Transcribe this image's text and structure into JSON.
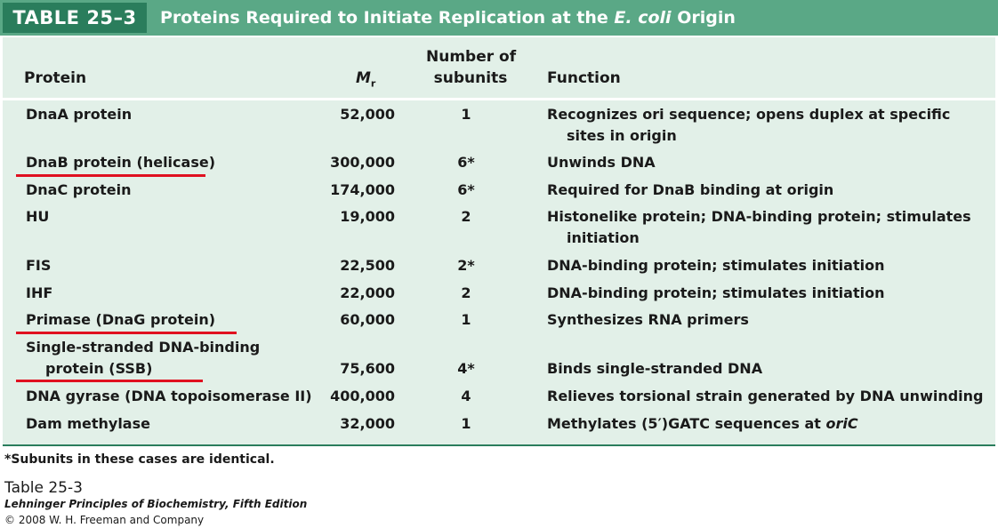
{
  "table_label": "TABLE 25–3",
  "title": {
    "prefix": "Proteins Required to Initiate Replication at the ",
    "italic": "E. coli",
    "suffix": " Origin"
  },
  "headers": {
    "protein": "Protein",
    "mr_main": "M",
    "mr_sub": "r",
    "subunits_line1": "Number of",
    "subunits_line2": "subunits",
    "function": "Function"
  },
  "rows": [
    {
      "protein": "DnaA protein",
      "mr": "52,000",
      "subunits": "1",
      "function1": "Recognizes ori sequence; opens duplex at specific",
      "function2": "sites in origin",
      "underlined": false
    },
    {
      "protein": "DnaB protein (helicase)",
      "mr": "300,000",
      "subunits": "6*",
      "function1": "Unwinds DNA",
      "underlined": true
    },
    {
      "protein": "DnaC protein",
      "mr": "174,000",
      "subunits": "6*",
      "function1": "Required for DnaB binding at origin",
      "underlined": false
    },
    {
      "protein": "HU",
      "mr": "19,000",
      "subunits": "2",
      "function1": "Histonelike protein; DNA-binding protein; stimulates",
      "function2": "initiation",
      "underlined": false
    },
    {
      "protein": "FIS",
      "mr": "22,500",
      "subunits": "2*",
      "function1": "DNA-binding protein; stimulates initiation",
      "underlined": false
    },
    {
      "protein": "IHF",
      "mr": "22,000",
      "subunits": "2",
      "function1": "DNA-binding protein; stimulates initiation",
      "underlined": false
    },
    {
      "protein": "Primase (DnaG protein)",
      "mr": "60,000",
      "subunits": "1",
      "function1": "Synthesizes RNA primers",
      "underlined": true
    },
    {
      "protein": "Single-stranded DNA-binding",
      "protein2": "protein (SSB)",
      "mr": "75,600",
      "subunits": "4*",
      "function1": "Binds single-stranded DNA",
      "underlined": true
    },
    {
      "protein": "DNA gyrase (DNA topoisomerase II)",
      "mr": "400,000",
      "subunits": "4",
      "function1": "Relieves torsional strain generated by DNA unwinding",
      "underlined": false
    },
    {
      "protein": "Dam methylase",
      "mr": "32,000",
      "subunits": "1",
      "function1": "Methylates (5′)GATC sequences at ",
      "function_italic": "oriC",
      "underlined": false
    }
  ],
  "footnote": "*Subunits in these cases are identical.",
  "caption": {
    "title": "Table 25-3",
    "book": "Lehninger Principles of Biochemistry, Fifth Edition",
    "copyright": "© 2008 W. H. Freeman and Company"
  },
  "colors": {
    "header_bar": "#5aa886",
    "tag_bg": "#2a7d5c",
    "table_bg": "#e2f0e8",
    "underline": "#e01020"
  }
}
